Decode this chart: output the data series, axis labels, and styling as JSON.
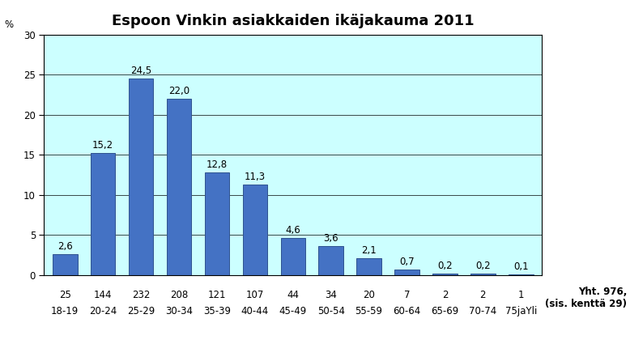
{
  "title": "Espoon Vinkin asiakkaiden ikäjakauma 2011",
  "ylabel": "%",
  "ylim": [
    0,
    30
  ],
  "yticks": [
    0,
    5,
    10,
    15,
    20,
    25,
    30
  ],
  "categories": [
    "18-19",
    "20-24",
    "25-29",
    "30-34",
    "35-39",
    "40-44",
    "45-49",
    "50-54",
    "55-59",
    "60-64",
    "65-69",
    "70-74",
    "75jaYli"
  ],
  "counts": [
    "25",
    "144",
    "232",
    "208",
    "121",
    "107",
    "44",
    "34",
    "20",
    "7",
    "2",
    "2",
    "1"
  ],
  "values": [
    2.6,
    15.2,
    24.5,
    22.0,
    12.8,
    11.3,
    4.6,
    3.6,
    2.1,
    0.7,
    0.2,
    0.2,
    0.1
  ],
  "bar_color": "#4472C4",
  "bar_edge_color": "#2F528F",
  "plot_bg_color": "#CCFFFF",
  "fig_bg_color": "#FFFFFF",
  "title_fontsize": 13,
  "value_label_fontsize": 8.5,
  "tick_fontsize": 8.5,
  "note_text": "Yht. 976,\n(sis. kenttä 29)",
  "note_fontsize": 8.5,
  "grid_color": "#000000",
  "grid_linewidth": 0.5,
  "bar_width": 0.65
}
